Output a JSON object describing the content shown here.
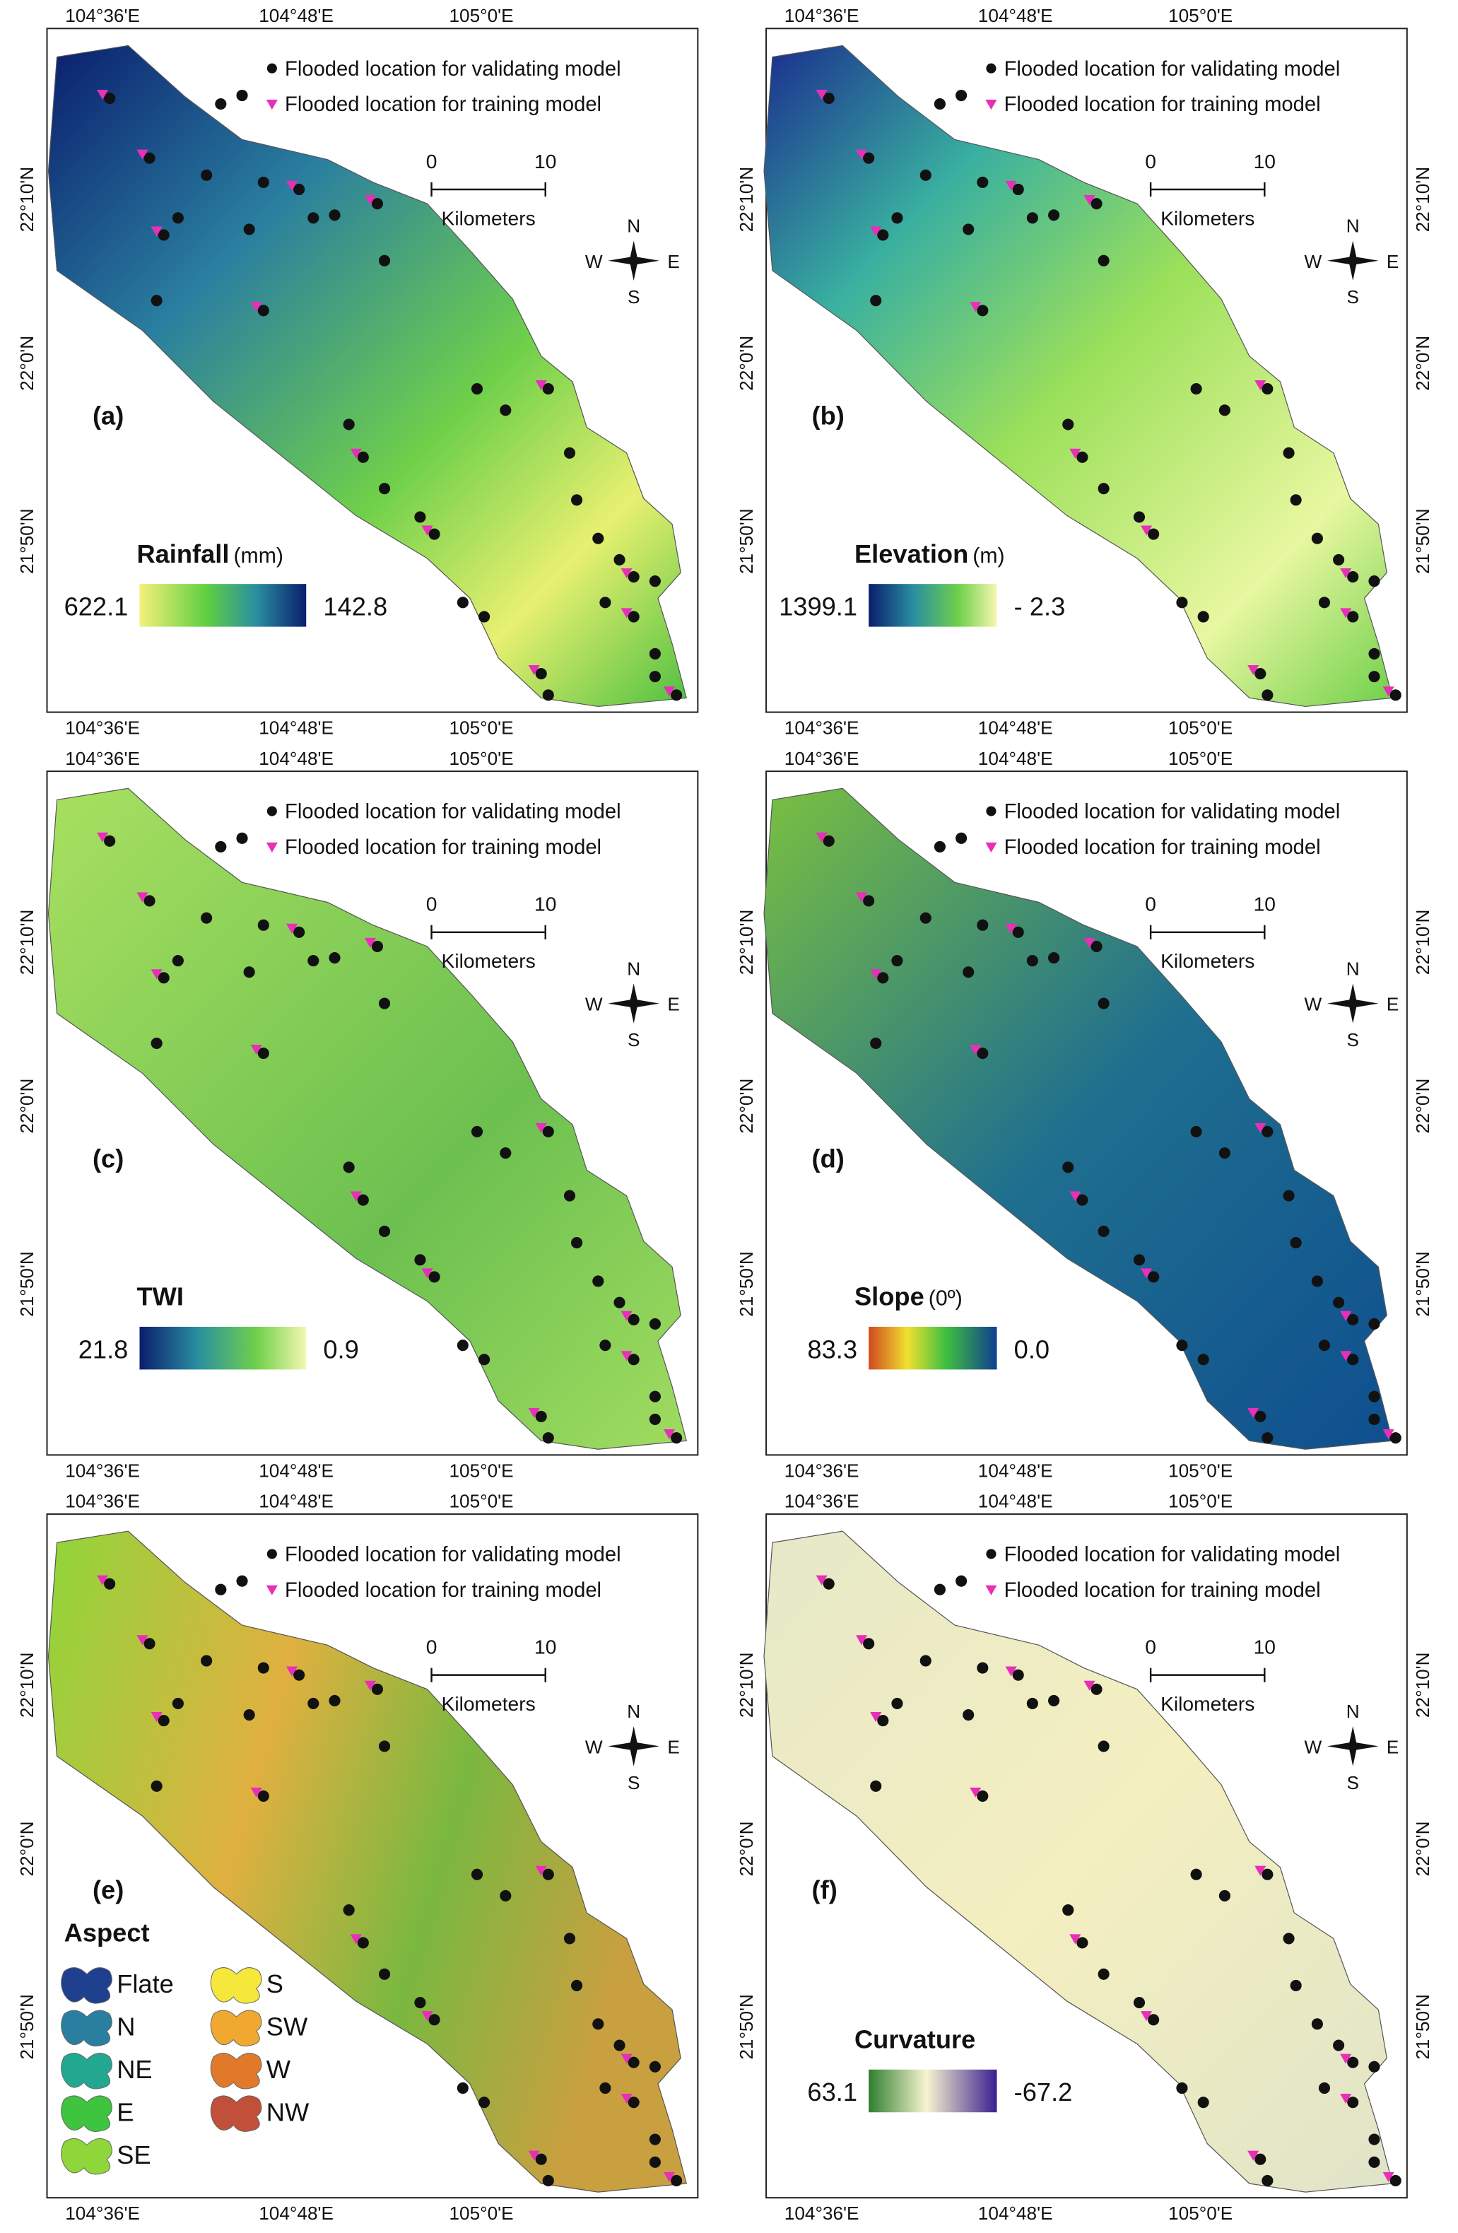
{
  "common": {
    "top_ticks": [
      "104°36'E",
      "104°48'E",
      "105°0'E"
    ],
    "lat_ticks": [
      "22°10'N",
      "22°0'N",
      "21°50'N"
    ],
    "legend_validating": "Flooded location for validating model",
    "legend_training": "Flooded location for training model",
    "scale_labels": [
      "0",
      "10"
    ],
    "scale_unit": "Kilometers",
    "compass": {
      "n": "N",
      "w": "W",
      "e": "E",
      "s": "S"
    }
  },
  "panels": [
    {
      "label": "(a)",
      "legend": {
        "title": "Rainfall",
        "unit": "(mm)",
        "min_label": "622.1",
        "max_label": "142.8"
      }
    },
    {
      "label": "(b)",
      "legend": {
        "title": "Elevation",
        "unit": "(m)",
        "min_label": "1399.1",
        "max_label": "- 2.3"
      }
    },
    {
      "label": "(c)",
      "legend": {
        "title": "TWI",
        "min_label": "21.8",
        "max_label": "0.9"
      }
    },
    {
      "label": "(d)",
      "legend": {
        "title": "Slope",
        "unit": "(0º)",
        "min_label": "83.3",
        "max_label": "0.0"
      }
    },
    {
      "label": "(e)",
      "legend": {
        "title": "Aspect",
        "classes": [
          {
            "name": "Flate",
            "color": "#1f3f8f"
          },
          {
            "name": "N",
            "color": "#2a7fa0"
          },
          {
            "name": "NE",
            "color": "#22a890"
          },
          {
            "name": "E",
            "color": "#3ec43e"
          },
          {
            "name": "SE",
            "color": "#8fd63a"
          },
          {
            "name": "S",
            "color": "#f5e83a"
          },
          {
            "name": "SW",
            "color": "#f0a830"
          },
          {
            "name": "W",
            "color": "#e07a2a"
          },
          {
            "name": "NW",
            "color": "#c0503a"
          }
        ]
      }
    },
    {
      "label": "(f)",
      "legend": {
        "title": "Curvature",
        "min_label": "63.1",
        "max_label": "-67.2"
      }
    }
  ]
}
